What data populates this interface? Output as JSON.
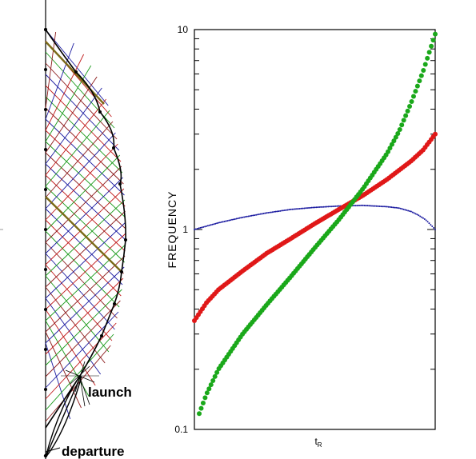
{
  "diagram": {
    "launch_label": "launch",
    "departure_label": "departure"
  },
  "chart_data": {
    "type": "scatter",
    "title": "",
    "xlabel": "t_R",
    "xlabel_main": "t",
    "xlabel_sub": "R",
    "ylabel": "FREQUENCY",
    "yscale": "log",
    "ylim": [
      0.1,
      10
    ],
    "yticks": [
      {
        "value": 0.1,
        "label": "0.1"
      },
      {
        "value": 1,
        "label": "1"
      },
      {
        "value": 10,
        "label": "10"
      }
    ],
    "xlim": [
      0,
      1
    ],
    "grid": false,
    "series": [
      {
        "color": "#1a1aa0",
        "marker": "small",
        "x": [
          0,
          0.1,
          0.2,
          0.3,
          0.4,
          0.5,
          0.6,
          0.7,
          0.8,
          0.85,
          0.9,
          0.93,
          0.96,
          0.98,
          1.0
        ],
        "y": [
          1.0,
          1.08,
          1.15,
          1.21,
          1.26,
          1.29,
          1.31,
          1.32,
          1.3,
          1.28,
          1.23,
          1.18,
          1.12,
          1.06,
          1.0
        ]
      },
      {
        "color": "#e01818",
        "marker": "large",
        "x": [
          0,
          0.05,
          0.1,
          0.2,
          0.3,
          0.4,
          0.5,
          0.6,
          0.7,
          0.8,
          0.9,
          0.95,
          1.0
        ],
        "y": [
          0.35,
          0.43,
          0.5,
          0.62,
          0.76,
          0.9,
          1.07,
          1.26,
          1.48,
          1.78,
          2.2,
          2.5,
          3.0
        ]
      },
      {
        "color": "#1aa81a",
        "marker": "large",
        "x": [
          0.02,
          0.05,
          0.1,
          0.2,
          0.3,
          0.4,
          0.5,
          0.6,
          0.7,
          0.8,
          0.85,
          0.9,
          0.95,
          0.98,
          1.0
        ],
        "y": [
          0.12,
          0.15,
          0.2,
          0.3,
          0.42,
          0.58,
          0.81,
          1.12,
          1.6,
          2.4,
          3.1,
          4.3,
          6.2,
          8.0,
          9.5
        ]
      }
    ]
  }
}
